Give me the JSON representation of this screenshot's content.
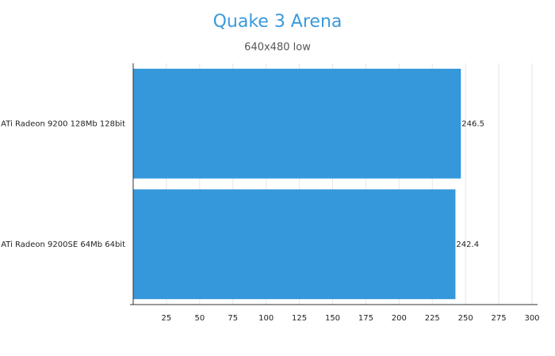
{
  "chart_data": {
    "type": "bar",
    "orientation": "horizontal",
    "title": "Quake 3 Arena",
    "subtitle": "640x480 low",
    "categories": [
      "ATi Radeon 9200 128Mb 128bit",
      "ATi Radeon 9200SE 64Mb 64bit"
    ],
    "values": [
      246.5,
      242.4
    ],
    "color": "#3498db",
    "xlim": [
      0,
      300
    ],
    "xticks": [
      25,
      50,
      75,
      100,
      125,
      150,
      175,
      200,
      225,
      250,
      275,
      300
    ],
    "grid": true
  }
}
